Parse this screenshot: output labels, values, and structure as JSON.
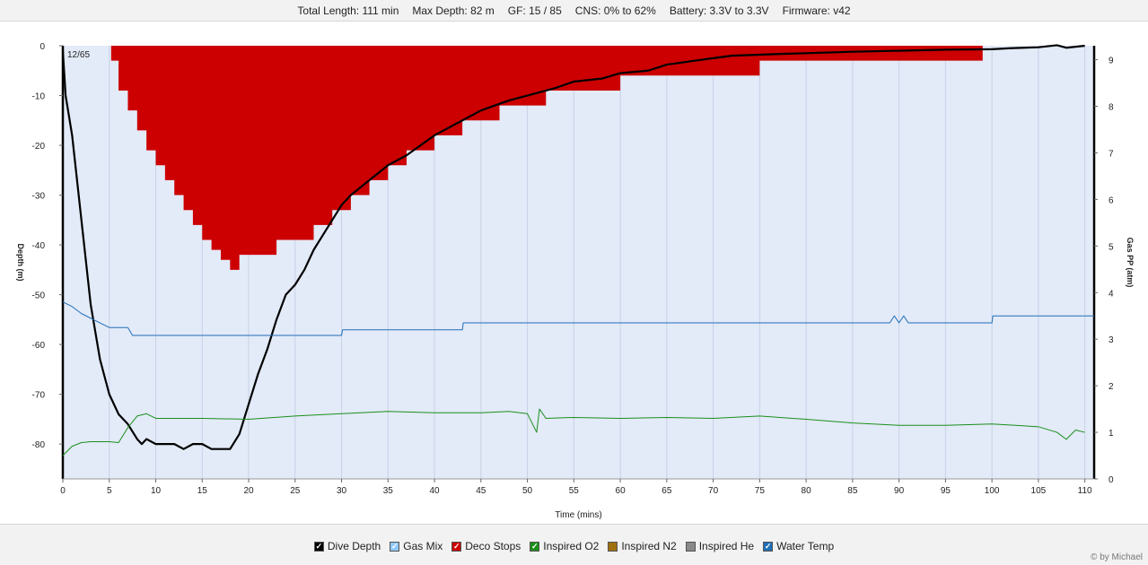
{
  "header": {
    "total_length": "Total Length: 111 min",
    "max_depth": "Max Depth: 82 m",
    "gf": "GF: 15 / 85",
    "cns": "CNS: 0% to 62%",
    "battery": "Battery: 3.3V to 3.3V",
    "firmware": "Firmware: v42"
  },
  "legend": [
    {
      "label": "Dive Depth",
      "checked": true,
      "color": "#000000"
    },
    {
      "label": "Gas Mix",
      "checked": true,
      "color": "#8ec8ff"
    },
    {
      "label": "Deco Stops",
      "checked": true,
      "color": "#cc0000"
    },
    {
      "label": "Inspired O2",
      "checked": true,
      "color": "#1a8f1a"
    },
    {
      "label": "Inspired N2",
      "checked": false,
      "color": "#a07010"
    },
    {
      "label": "Inspired He",
      "checked": false,
      "color": "#8a8a8a"
    },
    {
      "label": "Water Temp",
      "checked": true,
      "color": "#1f6fb8"
    }
  ],
  "credit": "© by Michael",
  "chart_data": {
    "type": "line",
    "xlabel": "Time (mins)",
    "ylabel": "Depth (m)",
    "y2label": "Gas PP (atm)",
    "xlim": [
      0,
      111
    ],
    "ylim": [
      -87,
      0
    ],
    "y2lim": [
      0,
      9.3
    ],
    "xticks": [
      0,
      5,
      10,
      15,
      20,
      25,
      30,
      35,
      40,
      45,
      50,
      55,
      60,
      65,
      70,
      75,
      80,
      85,
      90,
      95,
      100,
      105,
      110
    ],
    "yticks": [
      0,
      -10,
      -20,
      -30,
      -40,
      -50,
      -60,
      -70,
      -80
    ],
    "y2ticks": [
      0,
      1,
      2,
      3,
      4,
      5,
      6,
      7,
      8,
      9
    ],
    "annotation": "12/65",
    "background": "#e3eaf8",
    "series": [
      {
        "name": "Dive Depth",
        "color": "#000000",
        "axis": "left",
        "x": [
          0,
          0.3,
          1,
          2,
          3,
          4,
          5,
          6,
          7,
          8,
          8.5,
          9,
          10,
          11,
          12,
          13,
          14,
          15,
          16,
          17,
          18,
          19,
          20,
          21,
          22,
          23,
          24,
          25,
          26,
          27,
          28,
          29,
          30,
          31,
          33,
          35,
          37,
          40,
          42,
          45,
          48,
          50,
          53,
          55,
          58,
          60,
          63,
          65,
          68,
          70,
          72,
          75,
          78,
          80,
          85,
          90,
          95,
          100,
          102,
          105,
          107,
          108,
          109,
          110
        ],
        "y": [
          -1,
          -10,
          -18,
          -35,
          -52,
          -63,
          -70,
          -74,
          -76,
          -79,
          -80,
          -79,
          -80,
          -80,
          -80,
          -81,
          -80,
          -80,
          -81,
          -81,
          -81,
          -78,
          -72,
          -66,
          -61,
          -55,
          -50,
          -48,
          -45,
          -41,
          -38,
          -35,
          -32,
          -30,
          -27,
          -24,
          -22,
          -18,
          -16,
          -13,
          -11,
          -10,
          -8.5,
          -7.2,
          -6.6,
          -5.5,
          -5,
          -3.8,
          -3,
          -2.5,
          -2,
          -1.8,
          -1.6,
          -1.5,
          -1.2,
          -1,
          -0.8,
          -0.7,
          -0.5,
          -0.3,
          0.1,
          -0.4,
          -0.2,
          0
        ]
      },
      {
        "name": "Deco Stops",
        "color": "#cc0000",
        "axis": "left",
        "x": [
          5.2,
          6,
          7,
          8,
          9,
          10,
          11,
          12,
          13,
          14,
          15,
          16,
          17,
          18,
          19,
          20,
          21,
          22,
          23,
          25,
          27,
          29,
          31,
          33,
          35,
          37,
          40,
          43,
          47,
          52,
          55,
          60,
          65,
          70,
          75,
          78,
          99
        ],
        "y": [
          -3,
          -9,
          -13,
          -17,
          -21,
          -24,
          -27,
          -30,
          -33,
          -36,
          -39,
          -41,
          -43,
          -45,
          -42,
          -42,
          -42,
          -42,
          -39,
          -39,
          -36,
          -33,
          -30,
          -27,
          -24,
          -21,
          -18,
          -15,
          -12,
          -9,
          -9,
          -6,
          -6,
          -6,
          -3,
          -3,
          -3
        ]
      },
      {
        "name": "Inspired O2",
        "color": "#1a8f1a",
        "axis": "right",
        "x": [
          0,
          1,
          2,
          3,
          5,
          6,
          7,
          8,
          9,
          10,
          15,
          20,
          25,
          30,
          35,
          40,
          45,
          48,
          50,
          51,
          51.3,
          52,
          55,
          60,
          65,
          70,
          75,
          80,
          85,
          90,
          95,
          100,
          105,
          107,
          108,
          109,
          110
        ],
        "y": [
          0.5,
          0.7,
          0.78,
          0.8,
          0.8,
          0.78,
          1.1,
          1.35,
          1.4,
          1.3,
          1.3,
          1.28,
          1.35,
          1.4,
          1.45,
          1.42,
          1.42,
          1.45,
          1.4,
          1.0,
          1.5,
          1.3,
          1.32,
          1.3,
          1.32,
          1.3,
          1.35,
          1.28,
          1.2,
          1.15,
          1.15,
          1.18,
          1.12,
          1.0,
          0.85,
          1.05,
          1.0
        ]
      },
      {
        "name": "Water Temp",
        "color": "#1f6fb8",
        "axis": "right",
        "x": [
          0,
          1,
          2,
          4,
          5,
          7,
          7.5,
          10,
          20,
          30,
          30.1,
          40,
          43,
          43.1,
          60,
          80,
          89,
          89.5,
          90,
          90.5,
          91,
          100,
          100.1,
          111
        ],
        "y": [
          3.8,
          3.7,
          3.55,
          3.35,
          3.25,
          3.25,
          3.08,
          3.08,
          3.08,
          3.08,
          3.2,
          3.2,
          3.2,
          3.35,
          3.35,
          3.35,
          3.35,
          3.5,
          3.35,
          3.5,
          3.35,
          3.35,
          3.5,
          3.5
        ]
      }
    ]
  }
}
